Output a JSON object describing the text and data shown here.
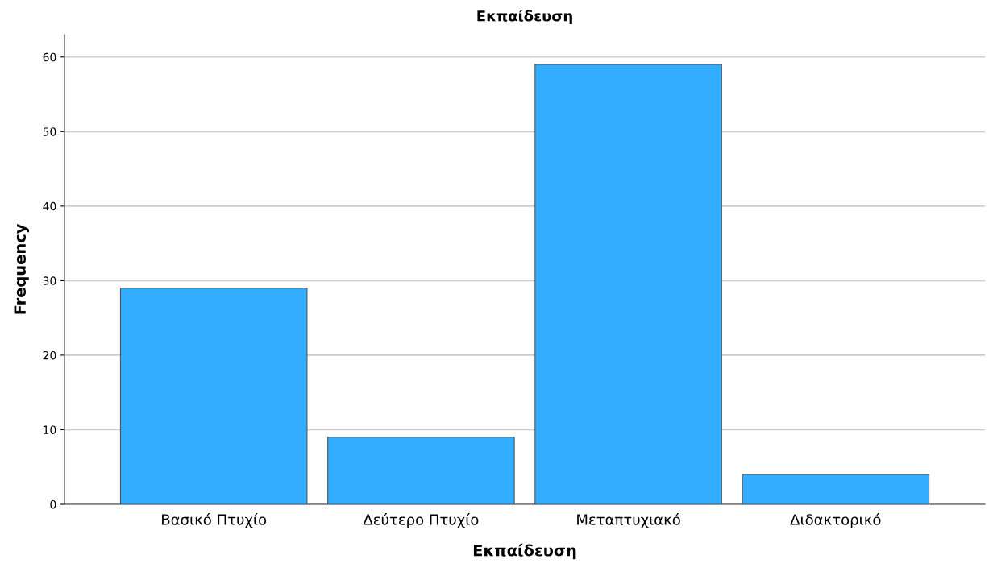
{
  "chart_data": {
    "type": "bar",
    "title": "Εκπαίδευση",
    "xlabel": "Εκπαίδευση",
    "ylabel": "Frequency",
    "categories": [
      "Βασικό Πτυχίο",
      "Δεύτερο Πτυχίο",
      "Μεταπτυχιακό",
      "Διδακτορικό"
    ],
    "values": [
      29,
      9,
      59,
      4
    ],
    "color": "#33adff",
    "ylim": [
      0,
      63
    ],
    "yticks": [
      0,
      10,
      20,
      30,
      40,
      50,
      60
    ],
    "grid": "y",
    "legend": false
  }
}
